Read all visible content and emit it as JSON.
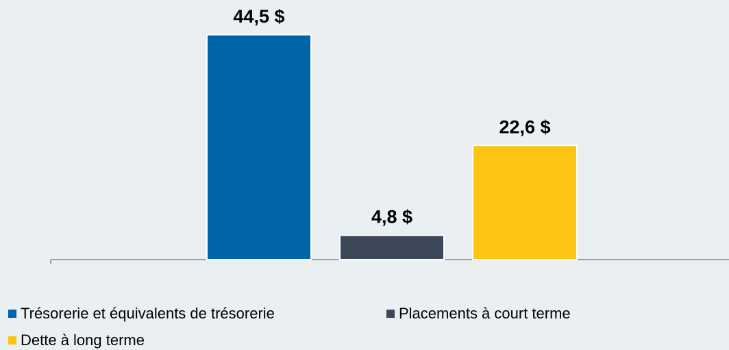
{
  "chart_data": {
    "type": "bar",
    "categories": [
      null
    ],
    "series": [
      {
        "name": "Trésorerie et équivalents de trésorerie",
        "color": "#0064a8",
        "values": [
          44.5
        ],
        "value_labels": [
          "44,5 $"
        ]
      },
      {
        "name": "Placements à court terme",
        "color": "#3c4858",
        "values": [
          4.8
        ],
        "value_labels": [
          "4,8 $"
        ]
      },
      {
        "name": "Dette à long terme",
        "color": "#fdc513",
        "values": [
          22.6
        ],
        "value_labels": [
          "22,6 $"
        ]
      }
    ],
    "ylim": [
      0,
      45
    ],
    "grid": false
  }
}
